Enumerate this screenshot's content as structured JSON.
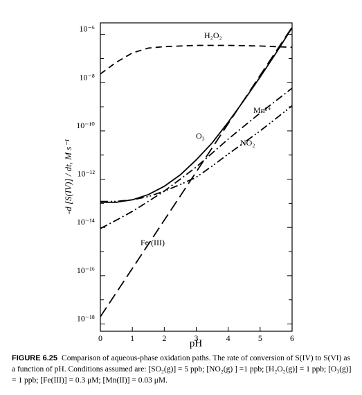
{
  "chart_data": {
    "type": "line",
    "y_label": "-d [S(IV)] / dt,  M s⁻¹",
    "x_label": "pH",
    "x": [
      0,
      0.5,
      1,
      1.5,
      2,
      2.5,
      3,
      3.5,
      4,
      4.5,
      5,
      5.5,
      6
    ],
    "series": [
      {
        "name": "H₂O₂",
        "color": "#000000",
        "style": "dashed",
        "values": [
          2.3e-08,
          7e-08,
          1.7e-07,
          2.7e-07,
          3.1e-07,
          3.3e-07,
          3.5e-07,
          3.5e-07,
          3.5e-07,
          3.4e-07,
          3.3e-07,
          3.1e-07,
          2.9e-07
        ]
      },
      {
        "name": "O₃",
        "color": "#000000",
        "style": "solid",
        "values": [
          1.1e-13,
          1.1e-13,
          1.4e-13,
          2.3e-13,
          5.1e-13,
          1.5e-12,
          6.3e-12,
          3.2e-11,
          2.3e-10,
          1.9e-09,
          1.7e-08,
          1.7e-07,
          1.9e-06
        ]
      },
      {
        "name": "Mn²⁺",
        "color": "#000000",
        "style": "dashdot",
        "values": [
          9e-15,
          2e-14,
          4.6e-14,
          1.2e-13,
          3.2e-13,
          1e-12,
          3.2e-12,
          1.2e-11,
          4.6e-11,
          1.6e-10,
          5.5e-10,
          1.8e-09,
          5.9e-09
        ]
      },
      {
        "name": "NO₂",
        "color": "#000000",
        "style": "dashdotdot",
        "values": [
          1.2e-13,
          1.2e-13,
          1.4e-13,
          1.9e-13,
          3.2e-13,
          6e-13,
          1.2e-12,
          3.5e-12,
          1.1e-11,
          3.3e-11,
          1e-10,
          3.3e-10,
          1.1e-09
        ]
      },
      {
        "name": "Fe (III)",
        "color": "#000000",
        "style": "longdash",
        "values": [
          2e-18,
          2e-17,
          2e-16,
          2e-15,
          2e-14,
          2e-13,
          2e-12,
          2e-11,
          2e-10,
          2e-09,
          2e-08,
          2e-07,
          2e-06
        ]
      }
    ],
    "xlim": [
      0,
      6
    ],
    "xticks": [
      0,
      1,
      2,
      3,
      4,
      5,
      6
    ],
    "ylim": [
      5e-19,
      3e-06
    ],
    "log_scale_y": true,
    "yticks": [
      {
        "value": 1e-18,
        "label": "10⁻¹⁸"
      },
      {
        "value": 1e-16,
        "label": "10⁻¹⁶"
      },
      {
        "value": 1e-14,
        "label": "10⁻¹⁴"
      },
      {
        "value": 1e-12,
        "label": "10⁻¹²"
      },
      {
        "value": 1e-10,
        "label": "10⁻¹⁰"
      },
      {
        "value": 1e-08,
        "label": "10⁻⁸"
      },
      {
        "value": 1e-06,
        "label": "10⁻⁶"
      }
    ],
    "yminor_ticks": [
      1e-17,
      1e-15,
      1e-13,
      1e-11,
      1e-09,
      1e-07
    ],
    "caption": {
      "label": "FIGURE 6.25",
      "text": "Comparison of aqueous-phase oxidation paths. The rate of conversion of S(IV) to S(VI) as a function of pH. Conditions assumed are: [SO₂(g)] = 5 ppb; [NO₂(g) ] =1 ppb; [H₂O₂(g)] = 1 ppb; [O₃(g)] = 1 ppb; [Fe(III)] = 0.3 μM; [Mn(II)] = 0.03 μM."
    }
  }
}
